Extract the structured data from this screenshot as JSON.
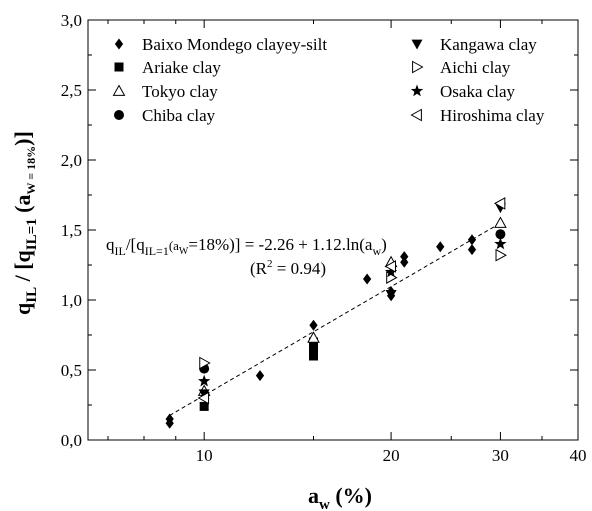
{
  "chart_data": {
    "type": "scatter",
    "title": "",
    "x_scale": "log",
    "xlim": [
      6.5,
      40
    ],
    "ylim": [
      0,
      3
    ],
    "x_ticks": [
      {
        "v": 10,
        "label": "10"
      },
      {
        "v": 20,
        "label": "20"
      },
      {
        "v": 30,
        "label": "30"
      },
      {
        "v": 40,
        "label": "40"
      }
    ],
    "y_ticks": [
      {
        "v": 0,
        "label": "0,0"
      },
      {
        "v": 0.5,
        "label": "0,5"
      },
      {
        "v": 1,
        "label": "1,0"
      },
      {
        "v": 1.5,
        "label": "1,5"
      },
      {
        "v": 2,
        "label": "2,0"
      },
      {
        "v": 2.5,
        "label": "2,5"
      },
      {
        "v": 3,
        "label": "3,0"
      }
    ],
    "xlabel": {
      "main": "a",
      "sub": "w",
      "tail": " (%)"
    },
    "ylabel": {
      "q": "q",
      "q_sub": "IL",
      "mid": " / [q",
      "mid_sub": "IL=1",
      "paren": " (a",
      "paren_sub": "W = 18%",
      "end": ")]"
    },
    "grid": false,
    "legend_position": "top",
    "equation": {
      "a": "q",
      "a_sub": "IL",
      "b": "/[q",
      "b_sub": "IL=1",
      "c": "(a",
      "c_sub": "W",
      "d": "=18%)] = -2.26 + 1.12.ln(a",
      "d_sub": "w",
      "e": ")"
    },
    "r2": {
      "a": "(R",
      "sup": "2",
      "b": " = 0.94)"
    },
    "fit": {
      "intercept": -2.26,
      "slope": 1.12,
      "x_range": [
        8.8,
        30
      ]
    },
    "series": [
      {
        "name": "Baixo Mondego clayey-silt",
        "marker": "diamond",
        "points": [
          [
            8.8,
            0.12
          ],
          [
            8.8,
            0.15
          ],
          [
            12.3,
            0.46
          ],
          [
            15,
            0.82
          ],
          [
            18.3,
            1.15
          ],
          [
            20,
            1.03
          ],
          [
            20,
            1.06
          ],
          [
            21,
            1.27
          ],
          [
            21,
            1.31
          ],
          [
            24,
            1.38
          ],
          [
            27,
            1.36
          ],
          [
            27,
            1.43
          ]
        ]
      },
      {
        "name": "Ariake clay",
        "marker": "square",
        "points": [
          [
            10,
            0.24
          ],
          [
            15,
            0.6
          ],
          [
            15,
            0.64
          ],
          [
            15,
            0.67
          ],
          [
            15,
            0.7
          ]
        ]
      },
      {
        "name": "Tokyo clay",
        "marker": "triangle-up-open",
        "points": [
          [
            10,
            0.35
          ],
          [
            15,
            0.73
          ],
          [
            20,
            1.27
          ],
          [
            30,
            1.55
          ]
        ]
      },
      {
        "name": "Chiba clay",
        "marker": "circle",
        "points": [
          [
            10,
            0.51
          ],
          [
            30,
            1.47
          ]
        ]
      },
      {
        "name": "Kangawa clay",
        "marker": "triangle-down",
        "points": [
          [
            10,
            0.33
          ],
          [
            20,
            1.04
          ],
          [
            30,
            1.66
          ]
        ]
      },
      {
        "name": "Aichi clay",
        "marker": "triangle-right-open",
        "points": [
          [
            10,
            0.55
          ],
          [
            20,
            1.16
          ],
          [
            30,
            1.32
          ]
        ]
      },
      {
        "name": "Osaka clay",
        "marker": "star",
        "points": [
          [
            10,
            0.42
          ],
          [
            20,
            1.2
          ],
          [
            30,
            1.4
          ]
        ]
      },
      {
        "name": "Hiroshima clay",
        "marker": "triangle-left-open",
        "points": [
          [
            10,
            0.3
          ],
          [
            20,
            1.24
          ],
          [
            30,
            1.69
          ]
        ]
      }
    ]
  }
}
